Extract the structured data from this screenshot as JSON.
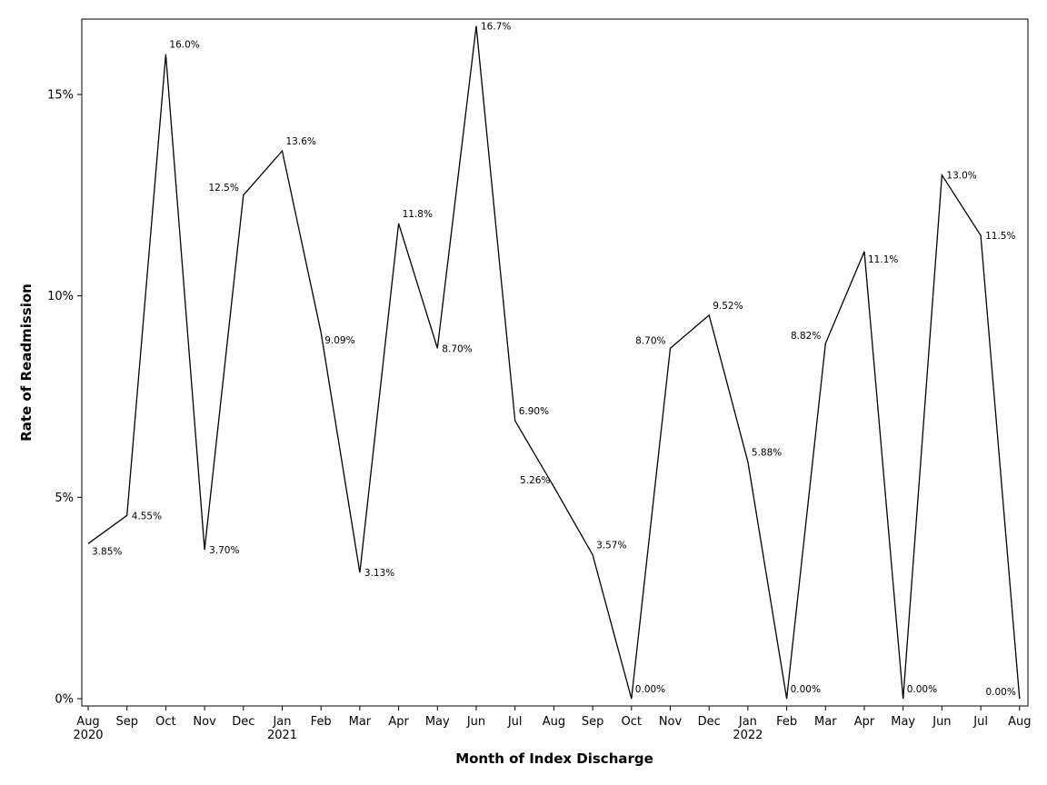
{
  "chart_data": {
    "type": "line",
    "title": "",
    "xlabel": "Month of Index Discharge",
    "ylabel": "Rate of Readmission",
    "ylim": [
      0,
      17
    ],
    "yticks": [
      0,
      5,
      10,
      15
    ],
    "ytick_labels": [
      "0%",
      "5%",
      "10%",
      "15%"
    ],
    "grid": false,
    "legend": "none",
    "line_color": "#000000",
    "categories": [
      "Aug",
      "Sep",
      "Oct",
      "Nov",
      "Dec",
      "Jan",
      "Feb",
      "Mar",
      "Apr",
      "May",
      "Jun",
      "Jul",
      "Aug",
      "Sep",
      "Oct",
      "Nov",
      "Dec",
      "Jan",
      "Feb",
      "Mar",
      "Apr",
      "May",
      "Jun",
      "Jul",
      "Aug"
    ],
    "year_labels": [
      "2020",
      "",
      "",
      "",
      "",
      "2021",
      "",
      "",
      "",
      "",
      "",
      "",
      "",
      "",
      "",
      "",
      "",
      "2022",
      "",
      "",
      "",
      "",
      "",
      "",
      ""
    ],
    "values": [
      3.85,
      4.55,
      16.0,
      3.7,
      12.5,
      13.6,
      9.09,
      3.13,
      11.8,
      8.7,
      16.7,
      6.9,
      5.26,
      3.57,
      0.0,
      8.7,
      9.52,
      5.88,
      0.0,
      8.82,
      11.1,
      0.0,
      13.0,
      11.5,
      0.0
    ],
    "data_labels": [
      "3.85%",
      "4.55%",
      "16.0%",
      "3.70%",
      "12.5%",
      "13.6%",
      "9.09%",
      "3.13%",
      "11.8%",
      "8.70%",
      "16.7%",
      "6.90%",
      "5.26%",
      "3.57%",
      "0.00%",
      "8.70%",
      "9.52%",
      "5.88%",
      "0.00%",
      "8.82%",
      "11.1%",
      "0.00%",
      "13.0%",
      "11.5%",
      "0.00%"
    ],
    "label_positions": [
      "below-right",
      "right",
      "above-right",
      "right",
      "left",
      "above-right",
      "below-right",
      "right",
      "above-right",
      "right",
      "right",
      "above-right",
      "above-left",
      "above-right",
      "above-right",
      "left",
      "above-right",
      "above-right",
      "above-right",
      "left",
      "below-right",
      "above-right",
      "right",
      "right",
      "above-left"
    ]
  }
}
